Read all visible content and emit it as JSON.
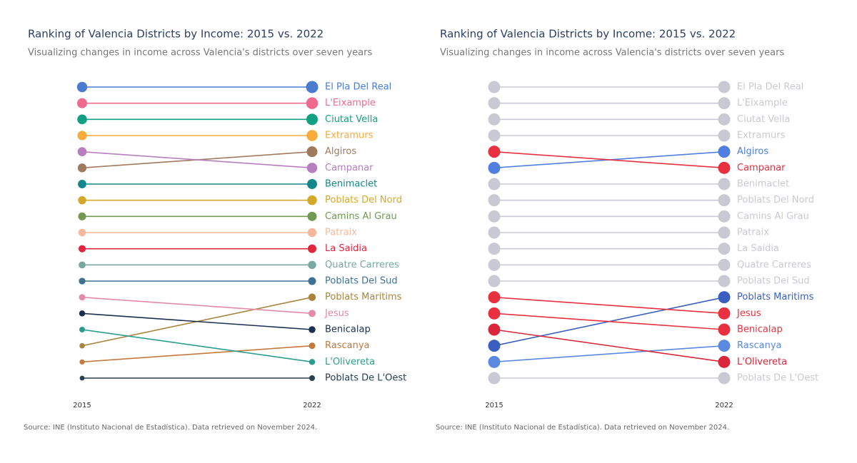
{
  "chart_data": [
    {
      "type": "slope",
      "title": "Ranking of Valencia Districts by Income: 2015 vs. 2022",
      "subtitle": "Visualizing changes in income across Valencia's districts over seven years",
      "source": "Source: INE (Instituto Nacional de Estadística). Data retrieved on November 2024.",
      "categories": [
        "2015",
        "2022"
      ],
      "ylim": [
        19,
        1
      ],
      "series": [
        {
          "name": "El Pla Del Real",
          "color": "#4a7bd0",
          "values": [
            1,
            1
          ]
        },
        {
          "name": "L'Eixample",
          "color": "#f0698f",
          "values": [
            2,
            2
          ]
        },
        {
          "name": "Ciutat Vella",
          "color": "#12a085",
          "values": [
            3,
            3
          ]
        },
        {
          "name": "Extramurs",
          "color": "#f6ab3b",
          "values": [
            4,
            4
          ]
        },
        {
          "name": "Algiros",
          "color": "#a07a5c",
          "values": [
            6,
            5
          ]
        },
        {
          "name": "Campanar",
          "color": "#b77ec0",
          "values": [
            5,
            6
          ]
        },
        {
          "name": "Benimaclet",
          "color": "#13878c",
          "values": [
            7,
            7
          ]
        },
        {
          "name": "Poblats Del Nord",
          "color": "#d4a92a",
          "values": [
            8,
            8
          ]
        },
        {
          "name": "Camins Al Grau",
          "color": "#6f9a4f",
          "values": [
            9,
            9
          ]
        },
        {
          "name": "Patraix",
          "color": "#f5b89c",
          "values": [
            10,
            10
          ]
        },
        {
          "name": "La Saidia",
          "color": "#e0253d",
          "values": [
            11,
            11
          ]
        },
        {
          "name": "Quatre Carreres",
          "color": "#78a8a0",
          "values": [
            12,
            12
          ]
        },
        {
          "name": "Poblats Del Sud",
          "color": "#3e7194",
          "values": [
            13,
            13
          ]
        },
        {
          "name": "Poblats Maritims",
          "color": "#a8843e",
          "values": [
            17,
            14
          ]
        },
        {
          "name": "Jesus",
          "color": "#e38aa6",
          "values": [
            14,
            15
          ]
        },
        {
          "name": "Benicalap",
          "color": "#1b2f4f",
          "values": [
            15,
            16
          ]
        },
        {
          "name": "Rascanya",
          "color": "#c47a3e",
          "values": [
            18,
            17
          ]
        },
        {
          "name": "L'Olivereta",
          "color": "#2a9d8f",
          "values": [
            16,
            18
          ]
        },
        {
          "name": "Poblats De L'Oest",
          "color": "#263f52",
          "values": [
            19,
            19
          ]
        }
      ]
    },
    {
      "type": "slope",
      "title": "Ranking of Valencia Districts by Income: 2015 vs. 2022",
      "subtitle": "Visualizing changes in income across Valencia's districts over seven years",
      "source": "Source: INE (Instituto Nacional de Estadística). Data retrieved on November 2024.",
      "categories": [
        "2015",
        "2022"
      ],
      "ylim": [
        19,
        1
      ],
      "series": [
        {
          "name": "El Pla Del Real",
          "color": "#c9c9d3",
          "values": [
            1,
            1
          ]
        },
        {
          "name": "L'Eixample",
          "color": "#c9c9d3",
          "values": [
            2,
            2
          ]
        },
        {
          "name": "Ciutat Vella",
          "color": "#c9c9d3",
          "values": [
            3,
            3
          ]
        },
        {
          "name": "Extramurs",
          "color": "#c9c9d3",
          "values": [
            4,
            4
          ]
        },
        {
          "name": "Algiros",
          "color": "#4f7fe0",
          "values": [
            6,
            5
          ]
        },
        {
          "name": "Campanar",
          "color": "#e8303f",
          "values": [
            5,
            6
          ]
        },
        {
          "name": "Benimaclet",
          "color": "#c9c9d3",
          "values": [
            7,
            7
          ]
        },
        {
          "name": "Poblats Del Nord",
          "color": "#c9c9d3",
          "values": [
            8,
            8
          ]
        },
        {
          "name": "Camins Al Grau",
          "color": "#c9c9d3",
          "values": [
            9,
            9
          ]
        },
        {
          "name": "Patraix",
          "color": "#c9c9d3",
          "values": [
            10,
            10
          ]
        },
        {
          "name": "La Saidia",
          "color": "#c9c9d3",
          "values": [
            11,
            11
          ]
        },
        {
          "name": "Quatre Carreres",
          "color": "#c9c9d3",
          "values": [
            12,
            12
          ]
        },
        {
          "name": "Poblats Del Sud",
          "color": "#c9c9d3",
          "values": [
            13,
            13
          ]
        },
        {
          "name": "Poblats Maritims",
          "color": "#3960c0",
          "values": [
            17,
            14
          ]
        },
        {
          "name": "Jesus",
          "color": "#e8303f",
          "values": [
            14,
            15
          ]
        },
        {
          "name": "Benicalap",
          "color": "#e8303f",
          "values": [
            15,
            16
          ]
        },
        {
          "name": "Rascanya",
          "color": "#5a8ae0",
          "values": [
            18,
            17
          ]
        },
        {
          "name": "L'Olivereta",
          "color": "#d92638",
          "values": [
            16,
            18
          ]
        },
        {
          "name": "Poblats De L'Oest",
          "color": "#c9c9d3",
          "values": [
            19,
            19
          ]
        }
      ]
    }
  ]
}
